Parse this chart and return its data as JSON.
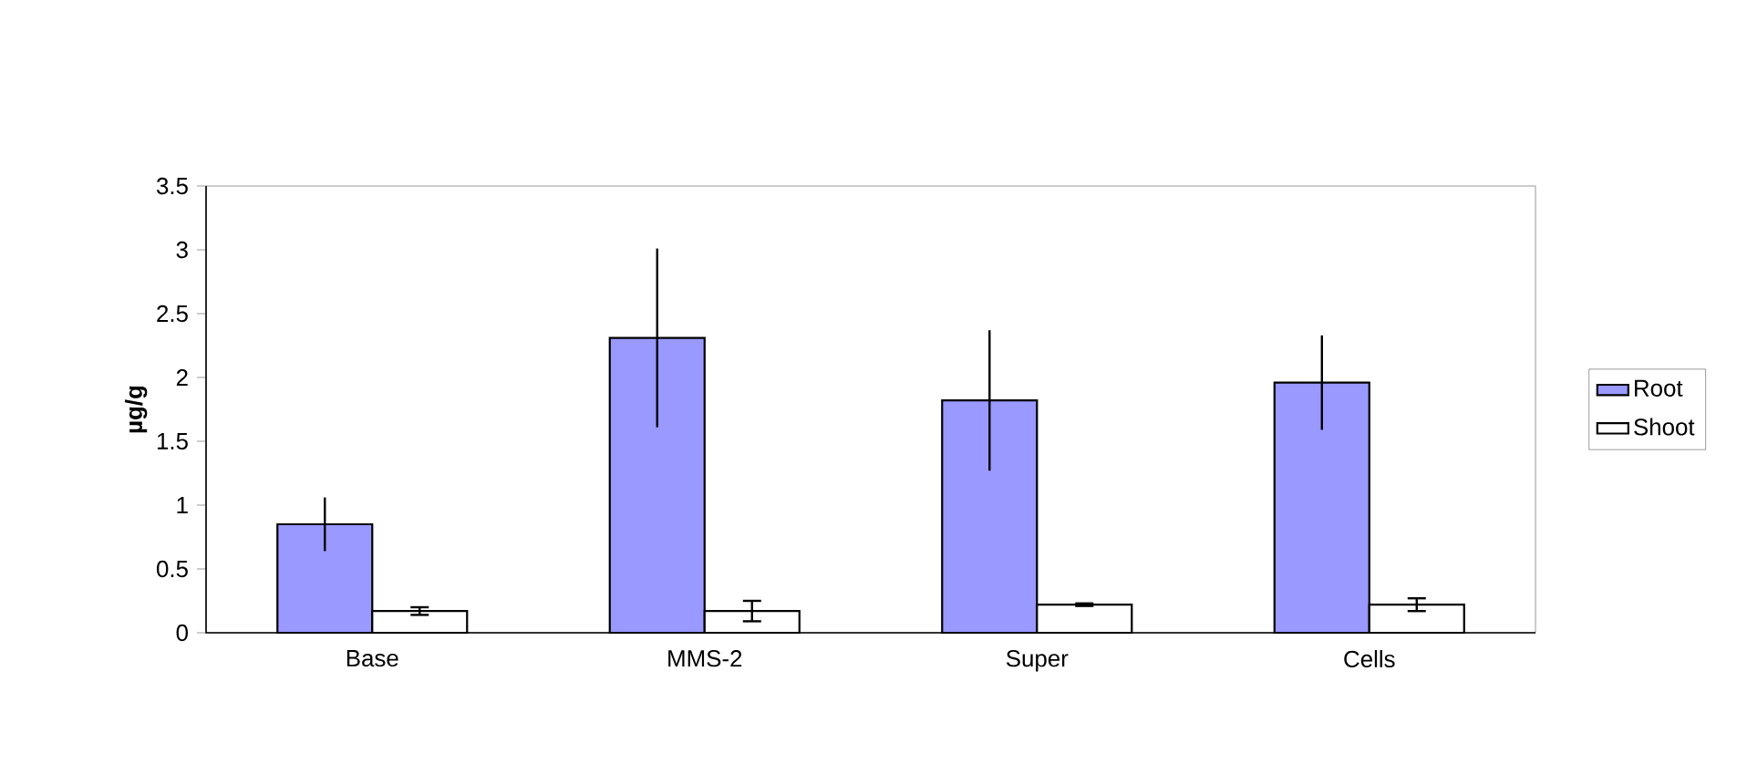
{
  "chart_data": {
    "type": "bar",
    "ylabel": "µg/g",
    "categories": [
      "Base",
      "MMS-2",
      "Super",
      "Cells"
    ],
    "series": [
      {
        "name": "Root",
        "color": "#9999ff",
        "values": [
          0.85,
          2.31,
          1.82,
          1.96
        ],
        "errors": [
          0.21,
          0.7,
          0.55,
          0.37
        ]
      },
      {
        "name": "Shoot",
        "color": "#ffffff",
        "values": [
          0.17,
          0.17,
          0.22,
          0.22
        ],
        "errors": [
          0.03,
          0.08,
          0.01,
          0.05
        ]
      }
    ],
    "ylim": [
      0,
      3.5
    ],
    "yticks": [
      0,
      0.5,
      1,
      1.5,
      2,
      2.5,
      3,
      3.5
    ],
    "legend": "right"
  }
}
